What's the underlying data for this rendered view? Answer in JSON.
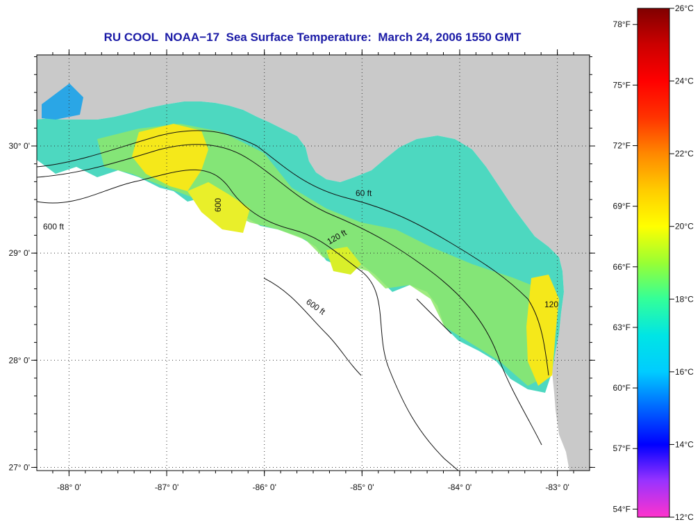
{
  "title": "RU COOL  NOAA−17  Sea Surface Temperature:  March 24, 2006 1550 GMT",
  "chart_data": {
    "type": "heatmap",
    "title": "RU COOL  NOAA−17  Sea Surface Temperature:  March 24, 2006 1550 GMT",
    "variable": "Sea Surface Temperature",
    "xlim": [
      -88.33,
      -82.67
    ],
    "ylim": [
      26.97,
      30.85
    ],
    "x_ticks": [
      -88,
      -87,
      -86,
      -85,
      -84,
      -83
    ],
    "x_tick_labels": [
      "-88° 0'",
      "-87° 0'",
      "-86° 0'",
      "-85° 0'",
      "-84° 0'",
      "-83° 0'"
    ],
    "y_ticks": [
      27,
      28,
      29,
      30
    ],
    "y_tick_labels": [
      "27° 0'",
      "28° 0'",
      "29° 0'",
      "30° 0'"
    ],
    "grid": true,
    "contour_labels": [
      "600 ft",
      "120 ft",
      "60 ft",
      "120",
      "600"
    ],
    "colorbar": {
      "celsius_range": [
        12,
        26
      ],
      "celsius_ticks": [
        12,
        14,
        16,
        18,
        20,
        22,
        24,
        26
      ],
      "celsius_labels": [
        "12°C",
        "14°C",
        "16°C",
        "18°C",
        "20°C",
        "22°C",
        "24°C",
        "26°C"
      ],
      "fahrenheit_ticks": [
        54,
        57,
        60,
        63,
        66,
        69,
        72,
        75,
        78
      ],
      "fahrenheit_labels": [
        "54°F",
        "57°F",
        "60°F",
        "63°F",
        "66°F",
        "69°F",
        "72°F",
        "75°F",
        "78°F"
      ],
      "stops": [
        "#ff33cc",
        "#9933ff",
        "#0000ff",
        "#0066ff",
        "#00ccff",
        "#00e5e5",
        "#33ff99",
        "#99ff33",
        "#ffff00",
        "#ffcc00",
        "#ff8800",
        "#ff3300",
        "#ff0000",
        "#cc0000",
        "#800000"
      ]
    }
  },
  "colors": {
    "land": "#c9c9c9",
    "ocean_nodata": "#ffffff",
    "title": "#1a1aa6",
    "frame": "#000000",
    "grid": "#333333"
  }
}
